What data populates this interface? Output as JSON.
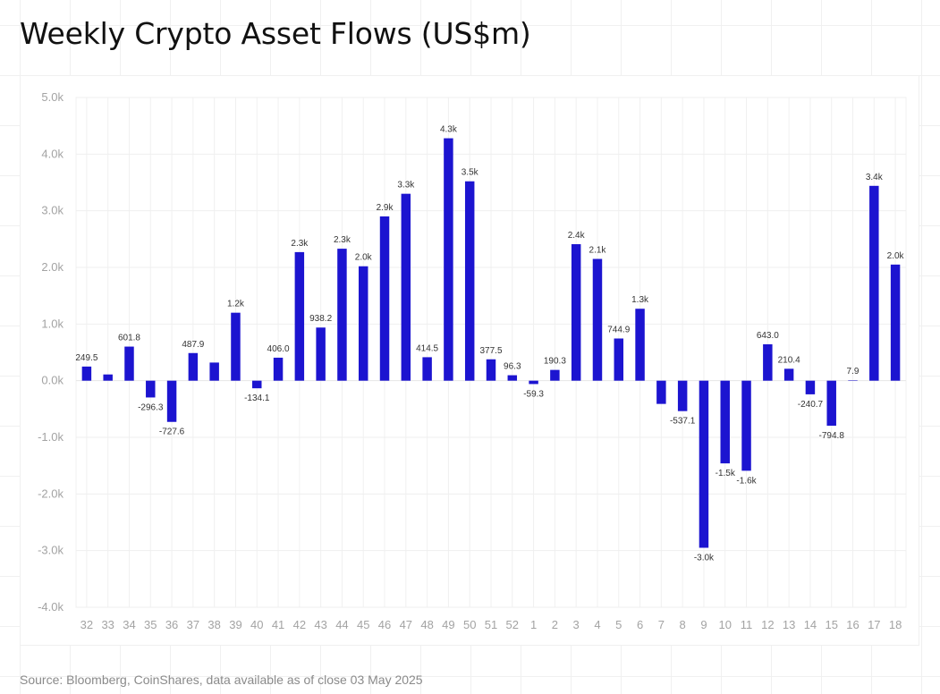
{
  "chart_data": {
    "type": "bar",
    "title": "Weekly Crypto Asset Flows (US$m)",
    "xlabel": "",
    "ylabel": "",
    "source": "Source: Bloomberg, CoinShares, data available as of close 03 May 2025",
    "ylim": [
      -4000,
      5000
    ],
    "yticks": [
      5000,
      4000,
      3000,
      2000,
      1000,
      0,
      -1000,
      -2000,
      -3000,
      -4000
    ],
    "ytick_labels": [
      "5.0k",
      "4.0k",
      "3.0k",
      "2.0k",
      "1.0k",
      "0.0k",
      "-1.0k",
      "-2.0k",
      "-3.0k",
      "-4.0k"
    ],
    "grid": true,
    "legend": "none",
    "bar_color": "#1c14d0",
    "categories": [
      "32",
      "33",
      "34",
      "35",
      "36",
      "37",
      "38",
      "39",
      "40",
      "41",
      "42",
      "43",
      "44",
      "45",
      "46",
      "47",
      "48",
      "49",
      "50",
      "51",
      "52",
      "1",
      "2",
      "3",
      "4",
      "5",
      "6",
      "7",
      "8",
      "9",
      "10",
      "11",
      "12",
      "13",
      "14",
      "15",
      "16",
      "17",
      "18"
    ],
    "values": [
      249.5,
      110,
      601.8,
      -296.3,
      -727.6,
      487.9,
      320,
      1200,
      -134.1,
      406.0,
      2270,
      938.2,
      2330,
      2020,
      2900,
      3300,
      414.5,
      4280,
      3520,
      377.5,
      96.3,
      -59.3,
      190.3,
      2410,
      2150,
      744.9,
      1270,
      -410,
      -537.1,
      -2950,
      -1460,
      -1590,
      643.0,
      210.4,
      -240.7,
      -794.8,
      7.9,
      3440,
      2050
    ],
    "data_labels": [
      "249.5",
      "",
      "601.8",
      "-296.3",
      "-727.6",
      "487.9",
      "",
      "1.2k",
      "-134.1",
      "406.0",
      "2.3k",
      "938.2",
      "2.3k",
      "2.0k",
      "2.9k",
      "3.3k",
      "414.5",
      "4.3k",
      "3.5k",
      "377.5",
      "96.3",
      "-59.3",
      "190.3",
      "2.4k",
      "2.1k",
      "744.9",
      "1.3k",
      "",
      "-537.1",
      "-3.0k",
      "-1.5k",
      "-1.6k",
      "643.0",
      "210.4",
      "-240.7",
      "-794.8",
      "7.9",
      "3.4k",
      "2.0k"
    ]
  }
}
